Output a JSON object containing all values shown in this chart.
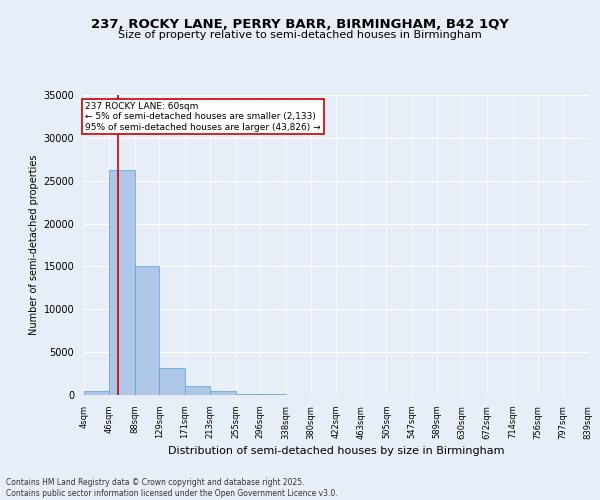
{
  "title": "237, ROCKY LANE, PERRY BARR, BIRMINGHAM, B42 1QY",
  "subtitle": "Size of property relative to semi-detached houses in Birmingham",
  "xlabel": "Distribution of semi-detached houses by size in Birmingham",
  "ylabel": "Number of semi-detached properties",
  "property_size": 60,
  "annotation_text": "237 ROCKY LANE: 60sqm\n← 5% of semi-detached houses are smaller (2,133)\n95% of semi-detached houses are larger (43,826) →",
  "bin_edges": [
    4,
    46,
    88,
    129,
    171,
    213,
    255,
    296,
    338,
    380,
    422,
    463,
    505,
    547,
    589,
    630,
    672,
    714,
    756,
    797,
    839
  ],
  "bin_counts": [
    500,
    26200,
    15000,
    3100,
    1100,
    500,
    150,
    80,
    50,
    30,
    20,
    15,
    10,
    8,
    5,
    4,
    3,
    2,
    2,
    2
  ],
  "bar_color": "#aec6e8",
  "bar_edge_color": "#5a9fd4",
  "red_line_color": "#cc0000",
  "background_color": "#e8eef8",
  "annotation_box_color": "#ffffff",
  "annotation_box_edge": "#cc0000",
  "footer_text": "Contains HM Land Registry data © Crown copyright and database right 2025.\nContains public sector information licensed under the Open Government Licence v3.0.",
  "ylim": [
    0,
    35000
  ],
  "yticks": [
    0,
    5000,
    10000,
    15000,
    20000,
    25000,
    30000,
    35000
  ]
}
